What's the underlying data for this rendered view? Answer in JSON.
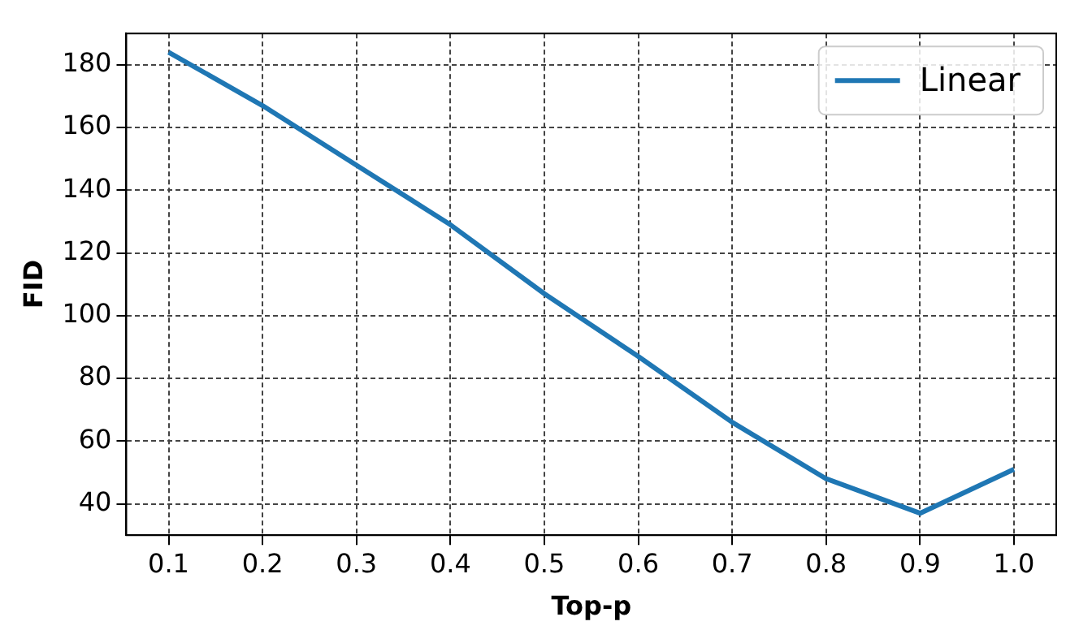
{
  "chart_data": {
    "type": "line",
    "xlabel": "Top-p",
    "ylabel": "FID",
    "x": [
      0.1,
      0.2,
      0.3,
      0.4,
      0.5,
      0.6,
      0.7,
      0.8,
      0.9,
      1.0
    ],
    "series": [
      {
        "name": "Linear",
        "color": "#1f77b4",
        "values": [
          184,
          167,
          148,
          129,
          107,
          87,
          66,
          48,
          37,
          51
        ]
      }
    ],
    "xlim": [
      0.055,
      1.045
    ],
    "xticks": [
      0.1,
      0.2,
      0.3,
      0.4,
      0.5,
      0.6,
      0.7,
      0.8,
      0.9,
      {
        "value": 1,
        "label": "1.0"
      }
    ],
    "ylim": [
      30,
      190
    ],
    "yticks": [
      40,
      60,
      80,
      100,
      120,
      140,
      160,
      180
    ],
    "grid": true,
    "legend": "top right",
    "marker": "none",
    "line_style": "solid"
  }
}
